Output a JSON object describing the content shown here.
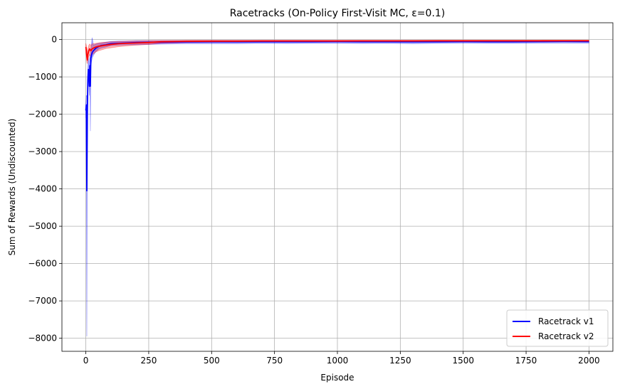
{
  "chart_data": {
    "type": "line",
    "title": "Racetracks (On-Policy First-Visit MC, ε=0.1)",
    "xlabel": "Episode",
    "ylabel": "Sum of Rewards (Undiscounted)",
    "xlim": [
      -95,
      2095
    ],
    "ylim": [
      -8350,
      450
    ],
    "xticks": [
      0,
      250,
      500,
      750,
      1000,
      1250,
      1500,
      1750,
      2000
    ],
    "xtick_labels": [
      "0",
      "250",
      "500",
      "750",
      "1000",
      "1250",
      "1500",
      "1750",
      "2000"
    ],
    "yticks": [
      0,
      -1000,
      -2000,
      -3000,
      -4000,
      -5000,
      -6000,
      -7000,
      -8000
    ],
    "ytick_labels": [
      "0",
      "−1000",
      "−2000",
      "−3000",
      "−4000",
      "−5000",
      "−6000",
      "−7000",
      "−8000"
    ],
    "grid": true,
    "legend_position": "bottom-right",
    "series": [
      {
        "name": "Racetrack v1",
        "color": "#0000ff",
        "band_color": "#0000ff",
        "x": [
          0,
          2,
          4,
          6,
          8,
          10,
          12,
          14,
          16,
          18,
          20,
          25,
          30,
          40,
          50,
          60,
          80,
          100,
          130,
          160,
          200,
          250,
          300,
          400,
          500,
          600,
          700,
          800,
          900,
          1000,
          1100,
          1200,
          1300,
          1400,
          1500,
          1600,
          1700,
          1800,
          1900,
          2000
        ],
        "y": [
          -1900,
          -1750,
          -4050,
          -2000,
          -1100,
          -800,
          -900,
          -1250,
          -700,
          -1250,
          -500,
          -350,
          -300,
          -230,
          -190,
          -160,
          -140,
          -110,
          -100,
          -90,
          -80,
          -75,
          -70,
          -65,
          -60,
          -62,
          -58,
          -60,
          -58,
          -55,
          -60,
          -58,
          -62,
          -58,
          -55,
          -60,
          -58,
          -55,
          -50,
          -55
        ],
        "band_low": [
          -2100,
          -2000,
          -7950,
          -2400,
          -1400,
          -1000,
          -1100,
          -1500,
          -900,
          -2450,
          -700,
          -500,
          -420,
          -320,
          -260,
          -230,
          -200,
          -160,
          -150,
          -140,
          -140,
          -130,
          -120,
          -110,
          -110,
          -110,
          -100,
          -105,
          -100,
          -100,
          -105,
          -100,
          -110,
          -100,
          -95,
          -100,
          -100,
          -95,
          -95,
          -95
        ],
        "band_high": [
          -1700,
          -1500,
          -1500,
          -1600,
          -800,
          -500,
          -600,
          -900,
          -400,
          -600,
          -300,
          50,
          -150,
          -120,
          -100,
          -90,
          -70,
          -50,
          -40,
          -40,
          -30,
          -30,
          -30,
          -30,
          -25,
          -25,
          -25,
          -25,
          -25,
          -25,
          -25,
          -25,
          -25,
          -25,
          -25,
          -25,
          -25,
          -25,
          -25,
          -25
        ]
      },
      {
        "name": "Racetrack v2",
        "color": "#ff0000",
        "band_color": "#ff0000",
        "x": [
          0,
          2,
          4,
          6,
          8,
          10,
          12,
          15,
          20,
          25,
          30,
          40,
          50,
          60,
          80,
          100,
          130,
          160,
          200,
          250,
          300,
          400,
          500,
          600,
          700,
          800,
          900,
          1000,
          1100,
          1200,
          1300,
          1400,
          1500,
          1600,
          1700,
          1800,
          1900,
          2000
        ],
        "y": [
          -200,
          -300,
          -450,
          -550,
          -400,
          -350,
          -300,
          -250,
          -300,
          -250,
          -230,
          -200,
          -180,
          -170,
          -150,
          -130,
          -110,
          -100,
          -90,
          -80,
          -60,
          -50,
          -45,
          -45,
          -40,
          -40,
          -40,
          -40,
          -38,
          -38,
          -38,
          -36,
          -36,
          -35,
          -35,
          -35,
          -34,
          -34
        ],
        "band_low": [
          -350,
          -450,
          -600,
          -650,
          -550,
          -500,
          -450,
          -400,
          -450,
          -400,
          -380,
          -330,
          -300,
          -280,
          -240,
          -220,
          -190,
          -170,
          -150,
          -130,
          -100,
          -80,
          -75,
          -70,
          -65,
          -65,
          -65,
          -62,
          -60,
          -60,
          -60,
          -58,
          -58,
          -56,
          -56,
          -55,
          -55,
          -55
        ],
        "band_high": [
          -100,
          -150,
          -250,
          -350,
          -250,
          -200,
          -150,
          -120,
          -150,
          -120,
          -110,
          -100,
          -90,
          -80,
          -70,
          -60,
          -50,
          -40,
          -35,
          -30,
          -25,
          -20,
          -20,
          -20,
          -18,
          -18,
          -18,
          -18,
          -16,
          -16,
          -16,
          -15,
          -15,
          -15,
          -15,
          -15,
          -15,
          -15
        ]
      }
    ]
  }
}
